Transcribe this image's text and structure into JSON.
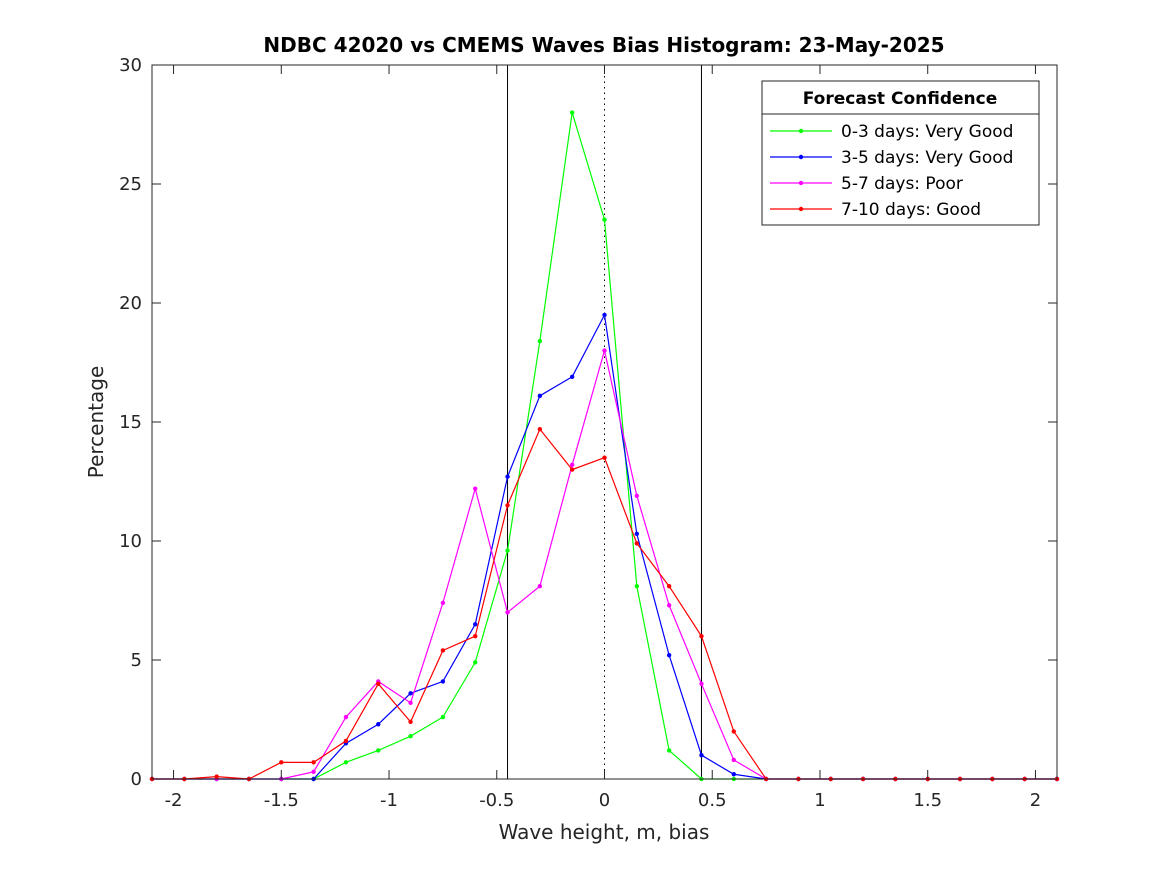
{
  "chart_data": {
    "type": "line",
    "title": "NDBC 42020 vs CMEMS Waves Bias Histogram: 23-May-2025",
    "xlabel": "Wave height, m, bias",
    "ylabel": "Percentage",
    "xlim": [
      -2.1,
      2.1
    ],
    "ylim": [
      0,
      30
    ],
    "xticks": [
      -2,
      -1.5,
      -1,
      -0.5,
      0,
      0.5,
      1,
      1.5,
      2
    ],
    "xtick_labels": [
      "-2",
      "-1.5",
      "-1",
      "-0.5",
      "0",
      "0.5",
      "1",
      "1.5",
      "2"
    ],
    "yticks": [
      0,
      5,
      10,
      15,
      20,
      25,
      30
    ],
    "ytick_labels": [
      "0",
      "5",
      "10",
      "15",
      "20",
      "25",
      "30"
    ],
    "vertical_lines": [
      {
        "x": -0.45,
        "style": "solid"
      },
      {
        "x": 0,
        "style": "dotted"
      },
      {
        "x": 0.45,
        "style": "solid"
      }
    ],
    "legend": {
      "title": "Forecast Confidence",
      "placement": "top-right"
    },
    "x": [
      -2.1,
      -1.95,
      -1.8,
      -1.65,
      -1.5,
      -1.35,
      -1.2,
      -1.05,
      -0.9,
      -0.75,
      -0.6,
      -0.45,
      -0.3,
      -0.15,
      0,
      0.15,
      0.3,
      0.45,
      0.6,
      0.75,
      0.9,
      1.05,
      1.2,
      1.35,
      1.5,
      1.65,
      1.8,
      1.95,
      2.1
    ],
    "series": [
      {
        "name": "0-3 days: Very Good",
        "color": "#00ff00",
        "values": [
          0,
          0,
          0,
          0,
          0,
          0,
          0.7,
          1.2,
          1.8,
          2.6,
          4.9,
          9.6,
          18.4,
          28.0,
          23.5,
          8.1,
          1.2,
          0,
          0,
          0,
          0,
          0,
          0,
          0,
          0,
          0,
          0,
          0,
          0
        ]
      },
      {
        "name": "3-5 days: Very Good",
        "color": "#0000ff",
        "values": [
          0,
          0,
          0,
          0,
          0,
          0,
          1.5,
          2.3,
          3.6,
          4.1,
          6.5,
          12.7,
          16.1,
          16.9,
          19.5,
          10.3,
          5.2,
          1.0,
          0.2,
          0,
          0,
          0,
          0,
          0,
          0,
          0,
          0,
          0,
          0
        ]
      },
      {
        "name": "5-7 days: Poor",
        "color": "#ff00ff",
        "values": [
          0,
          0,
          0,
          0,
          0,
          0.3,
          2.6,
          4.1,
          3.2,
          7.4,
          12.2,
          7.0,
          8.1,
          13.2,
          18.0,
          11.9,
          7.3,
          4.0,
          0.8,
          0,
          0,
          0,
          0,
          0,
          0,
          0,
          0,
          0,
          0
        ]
      },
      {
        "name": "7-10 days: Good",
        "color": "#ff0000",
        "values": [
          0,
          0,
          0.1,
          0,
          0.7,
          0.7,
          1.6,
          4.0,
          2.4,
          5.4,
          6.0,
          11.5,
          14.7,
          13.0,
          13.5,
          9.9,
          8.1,
          6.0,
          2.0,
          0,
          0,
          0,
          0,
          0,
          0,
          0,
          0,
          0,
          0
        ]
      }
    ]
  }
}
